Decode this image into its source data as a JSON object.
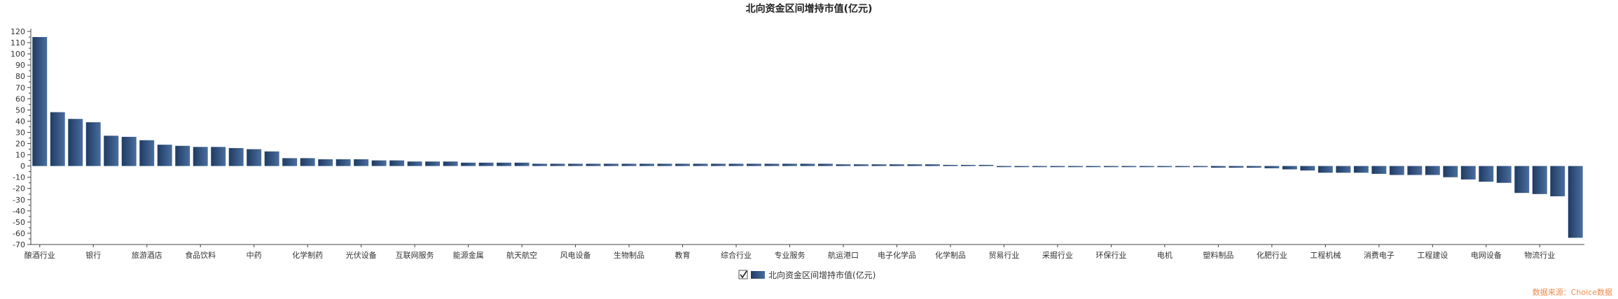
{
  "chart_data": {
    "type": "bar",
    "title": "北向资金区间增持市值(亿元)",
    "xlabel": "",
    "ylabel": "",
    "ylim": [
      -70,
      120
    ],
    "ytick_step": 10,
    "grid": false,
    "legend": {
      "placement": "bottom-center",
      "checked": true
    },
    "bar_color": "#1f3b63",
    "bar_color_light": "#4a6e9e",
    "source_text": "数据来源：Choice数据",
    "tick_labels": [
      "酿酒行业",
      "银行",
      "旅游酒店",
      "食品饮料",
      "中药",
      "化学制药",
      "光伏设备",
      "互联网服务",
      "能源金属",
      "航天航空",
      "风电设备",
      "生物制品",
      "教育",
      "综合行业",
      "专业服务",
      "航运港口",
      "电子化学品",
      "化学制品",
      "贸易行业",
      "采掘行业",
      "环保行业",
      "电机",
      "塑料制品",
      "化肥行业",
      "工程机械",
      "消费电子",
      "工程建设",
      "电网设备",
      "物流行业"
    ],
    "label_every": 3,
    "series": [
      {
        "name": "北向资金区间增持市值(亿元)",
        "values": [
          115,
          48,
          42,
          39,
          27,
          26,
          23,
          19,
          18,
          17,
          17,
          16,
          15,
          13,
          7,
          7,
          6,
          6,
          6,
          5,
          5,
          4,
          4,
          4,
          3,
          3,
          3,
          3,
          2,
          2,
          2,
          2,
          2,
          2,
          2,
          2,
          2,
          2,
          2,
          2,
          2,
          2,
          2,
          2,
          2,
          1.5,
          1.5,
          1.5,
          1.5,
          1.5,
          1.5,
          1,
          1,
          1,
          -1,
          -1,
          -1,
          -1,
          -1,
          -1,
          -1,
          -1,
          -1,
          -1,
          -1,
          -1,
          -1.5,
          -1.5,
          -1.5,
          -2,
          -3,
          -4,
          -6,
          -6,
          -6,
          -7,
          -8,
          -8,
          -8,
          -10,
          -12,
          -14,
          -15,
          -24,
          -25,
          -27,
          -64
        ]
      }
    ]
  }
}
